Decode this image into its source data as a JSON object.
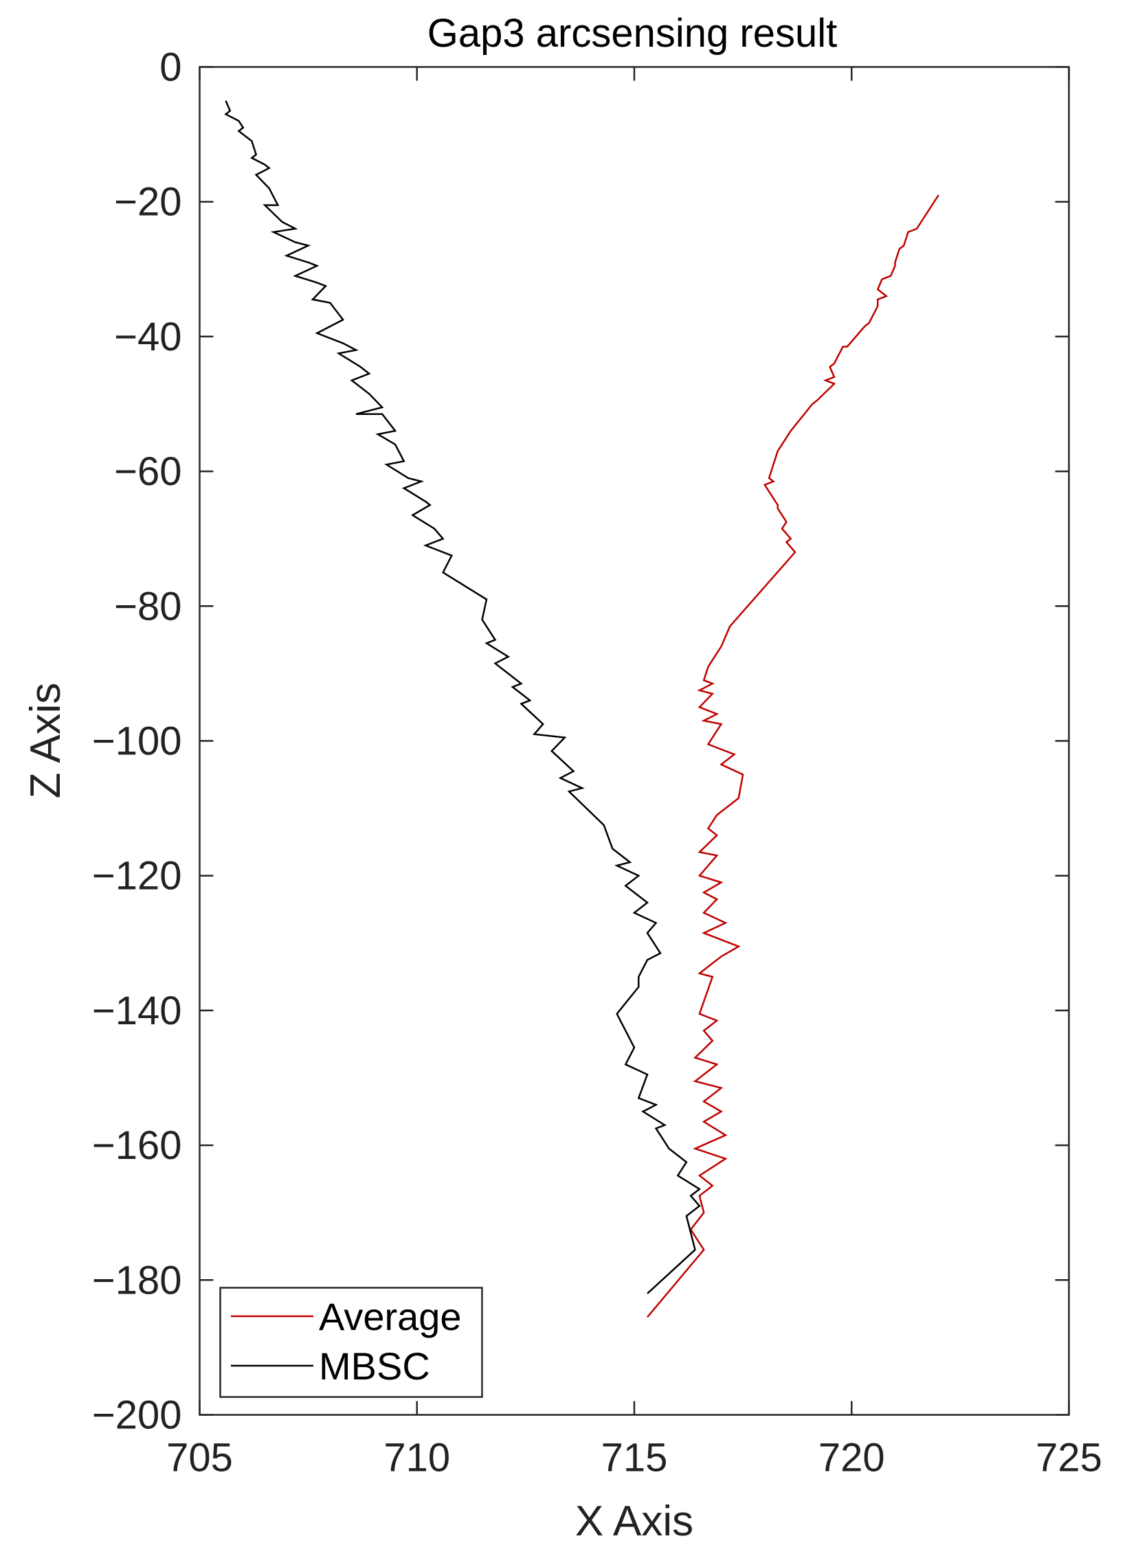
{
  "chart_data": {
    "type": "line",
    "title": "Gap3 arcsensing result",
    "xlabel": "X Axis",
    "ylabel": "Z Axis",
    "xlim": [
      705,
      725
    ],
    "ylim": [
      -200,
      0
    ],
    "xticks": [
      705,
      710,
      715,
      720,
      725
    ],
    "yticks": [
      0,
      -20,
      -40,
      -60,
      -80,
      -100,
      -120,
      -140,
      -160,
      -180,
      -200
    ],
    "xtick_labels": [
      "705",
      "710",
      "715",
      "720",
      "725"
    ],
    "ytick_labels": [
      "0",
      "−20",
      "−40",
      "−60",
      "−80",
      "−100",
      "−120",
      "−140",
      "−160",
      "−180",
      "−200"
    ],
    "grid": false,
    "legend_position": "bottom-left",
    "series": [
      {
        "name": "Average",
        "color": "#c00000",
        "x": [
          722.0,
          721.5,
          721.3,
          721.2,
          721.1,
          721.0,
          721.0,
          720.9,
          720.7,
          720.6,
          720.8,
          720.6,
          720.6,
          720.4,
          720.3,
          719.9,
          719.8,
          719.6,
          719.5,
          719.6,
          719.4,
          719.6,
          719.2,
          719.1,
          718.6,
          718.4,
          718.3,
          718.1,
          718.2,
          718.0,
          718.3,
          718.3,
          718.5,
          718.4,
          718.6,
          718.5,
          718.7,
          717.2,
          717.0,
          716.7,
          716.6,
          716.8,
          716.5,
          716.8,
          716.5,
          716.9,
          716.6,
          717.0,
          716.7,
          717.3,
          717.0,
          717.5,
          717.4,
          716.9,
          716.7,
          716.9,
          716.5,
          716.9,
          716.5,
          717.0,
          716.6,
          716.9,
          716.6,
          717.1,
          716.6,
          717.4,
          717.0,
          716.8,
          716.5,
          716.8,
          716.5,
          716.9,
          716.6,
          716.8,
          716.4,
          716.9,
          716.4,
          717.0,
          716.6,
          717.0,
          716.6,
          717.1,
          716.4,
          717.1,
          716.5,
          716.8,
          716.5,
          716.6,
          716.3,
          716.6,
          715.3
        ],
        "y": [
          -19,
          -24,
          -24.5,
          -26.5,
          -27,
          -29,
          -29.5,
          -31,
          -31.5,
          -33,
          -34,
          -34.5,
          -35.5,
          -38,
          -38.5,
          -41.5,
          -41.5,
          -44,
          -44.5,
          -46,
          -46.5,
          -47,
          -49.5,
          -50,
          -54,
          -56,
          -57,
          -61,
          -61.5,
          -62,
          -65,
          -65.5,
          -67.5,
          -68.5,
          -70,
          -70.5,
          -72,
          -83,
          -86,
          -89,
          -91,
          -91.5,
          -92.5,
          -93,
          -95,
          -96,
          -97,
          -97.5,
          -100.5,
          -102,
          -103.5,
          -105,
          -108.5,
          -111,
          -113,
          -114,
          -116.5,
          -117,
          -120,
          -121,
          -122.5,
          -123.5,
          -125.5,
          -127,
          -128.5,
          -130.5,
          -132,
          -133,
          -134.5,
          -135,
          -140.5,
          -141.5,
          -143,
          -144.5,
          -147,
          -148,
          -150.5,
          -151.5,
          -153.5,
          -155,
          -156.5,
          -158.5,
          -160.5,
          -162,
          -164.5,
          -166,
          -167.5,
          -170,
          -172.5,
          -175.5,
          -185.5
        ]
      },
      {
        "name": "MBSC",
        "color": "#000000",
        "x": [
          705.6,
          705.7,
          705.6,
          705.9,
          706.0,
          705.9,
          706.2,
          706.3,
          706.2,
          706.5,
          706.6,
          706.3,
          706.6,
          706.8,
          706.5,
          706.9,
          707.2,
          706.7,
          707.2,
          707.5,
          707.0,
          707.5,
          707.7,
          707.2,
          707.7,
          707.9,
          707.6,
          708.0,
          708.3,
          707.7,
          708.3,
          708.6,
          708.2,
          708.7,
          708.9,
          708.5,
          708.9,
          709.2,
          708.6,
          709.2,
          709.5,
          709.1,
          709.5,
          709.7,
          709.3,
          709.8,
          710.1,
          709.7,
          710.2,
          710.3,
          709.9,
          710.4,
          710.6,
          710.2,
          710.8,
          710.6,
          711.6,
          711.5,
          711.8,
          711.6,
          712.1,
          711.8,
          712.4,
          712.2,
          712.6,
          712.4,
          712.9,
          712.7,
          713.4,
          713.1,
          713.6,
          713.3,
          713.8,
          713.5,
          714.3,
          714.5,
          714.9,
          714.6,
          715.1,
          714.8,
          715.3,
          715.0,
          715.5,
          715.3,
          715.6,
          715.3,
          715.1,
          715.1,
          714.6,
          715.0,
          714.8,
          715.3,
          715.1,
          715.5,
          715.2,
          715.7,
          715.5,
          715.8,
          716.2,
          716.0,
          716.5,
          716.3,
          716.5,
          716.2,
          716.4,
          715.3
        ],
        "y": [
          -5,
          -6.5,
          -7,
          -8,
          -9,
          -9.5,
          -11,
          -13,
          -13.5,
          -14.5,
          -15,
          -16,
          -18,
          -20.5,
          -20.5,
          -23,
          -24,
          -24.5,
          -26,
          -26.5,
          -28,
          -29,
          -29.5,
          -31,
          -32,
          -32.5,
          -34.5,
          -35,
          -37.5,
          -39.5,
          -41,
          -42,
          -42.5,
          -44.5,
          -45.5,
          -46.5,
          -48.5,
          -50.5,
          -51.5,
          -51.5,
          -54,
          -54.5,
          -56,
          -58.5,
          -59,
          -61,
          -61.5,
          -62.5,
          -64.5,
          -65,
          -66.5,
          -68.5,
          -70,
          -71,
          -72.5,
          -75,
          -79,
          -82,
          -85,
          -85.5,
          -87.5,
          -88.5,
          -91.5,
          -92,
          -94,
          -94.5,
          -97.5,
          -99,
          -99.5,
          -101.5,
          -104.5,
          -105.5,
          -107,
          -107.5,
          -112.5,
          -116,
          -118,
          -118.5,
          -120,
          -121.5,
          -124,
          -125.5,
          -127,
          -128.5,
          -131.5,
          -132.5,
          -135,
          -136.5,
          -140.5,
          -145.5,
          -148,
          -149.5,
          -153,
          -154,
          -155,
          -157,
          -157.5,
          -160.5,
          -162.5,
          -164.5,
          -166.5,
          -167.5,
          -169,
          -170.5,
          -175.5,
          -182
        ]
      }
    ]
  }
}
